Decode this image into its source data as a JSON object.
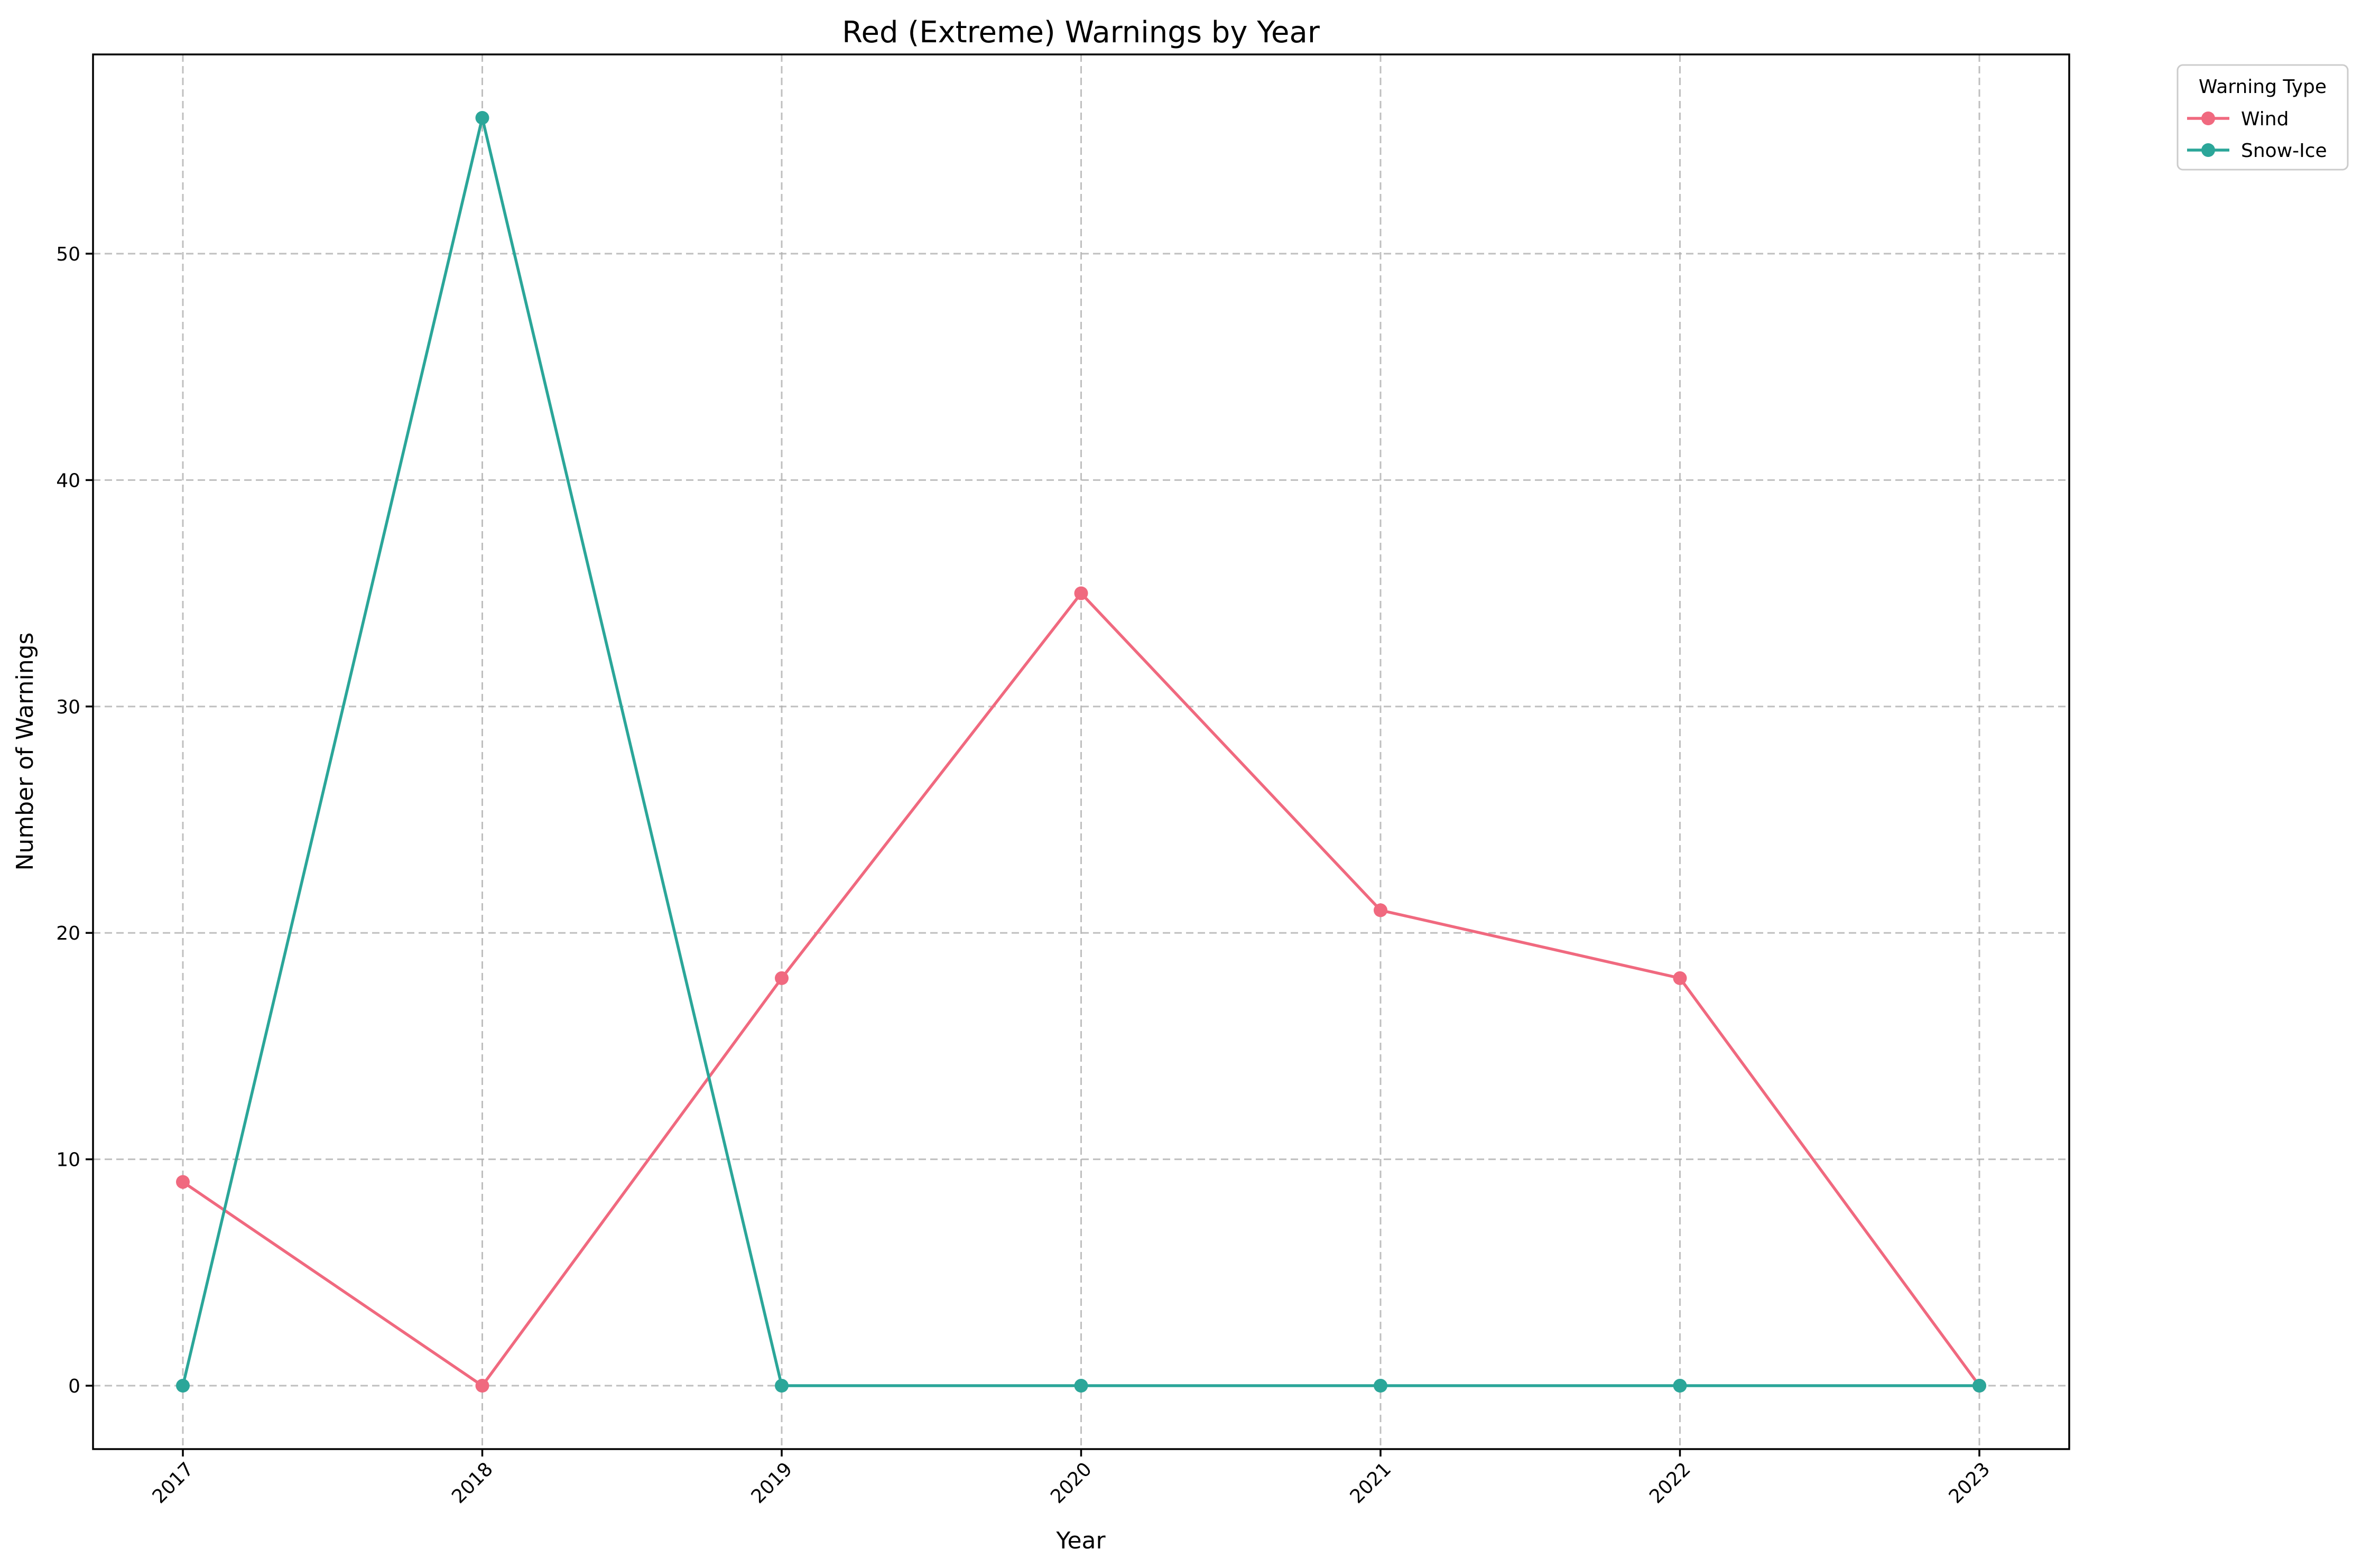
{
  "chart_data": {
    "type": "line",
    "title": "Red (Extreme) Warnings by Year",
    "xlabel": "Year",
    "ylabel": "Number of Warnings",
    "categories": [
      "2017",
      "2018",
      "2019",
      "2020",
      "2021",
      "2022",
      "2023"
    ],
    "y_ticks": [
      "0",
      "10",
      "20",
      "30",
      "40",
      "50"
    ],
    "ylim": [
      -2.8,
      58.8
    ],
    "grid": true,
    "legend": {
      "title": "Warning Type",
      "placement": "outside-top-right"
    },
    "series": [
      {
        "name": "Wind",
        "color": "#f0697f",
        "values": [
          9,
          0,
          18,
          35,
          21,
          18,
          0
        ]
      },
      {
        "name": "Snow-Ice",
        "color": "#2ba699",
        "values": [
          0,
          56,
          0,
          0,
          0,
          0,
          0
        ]
      }
    ]
  }
}
